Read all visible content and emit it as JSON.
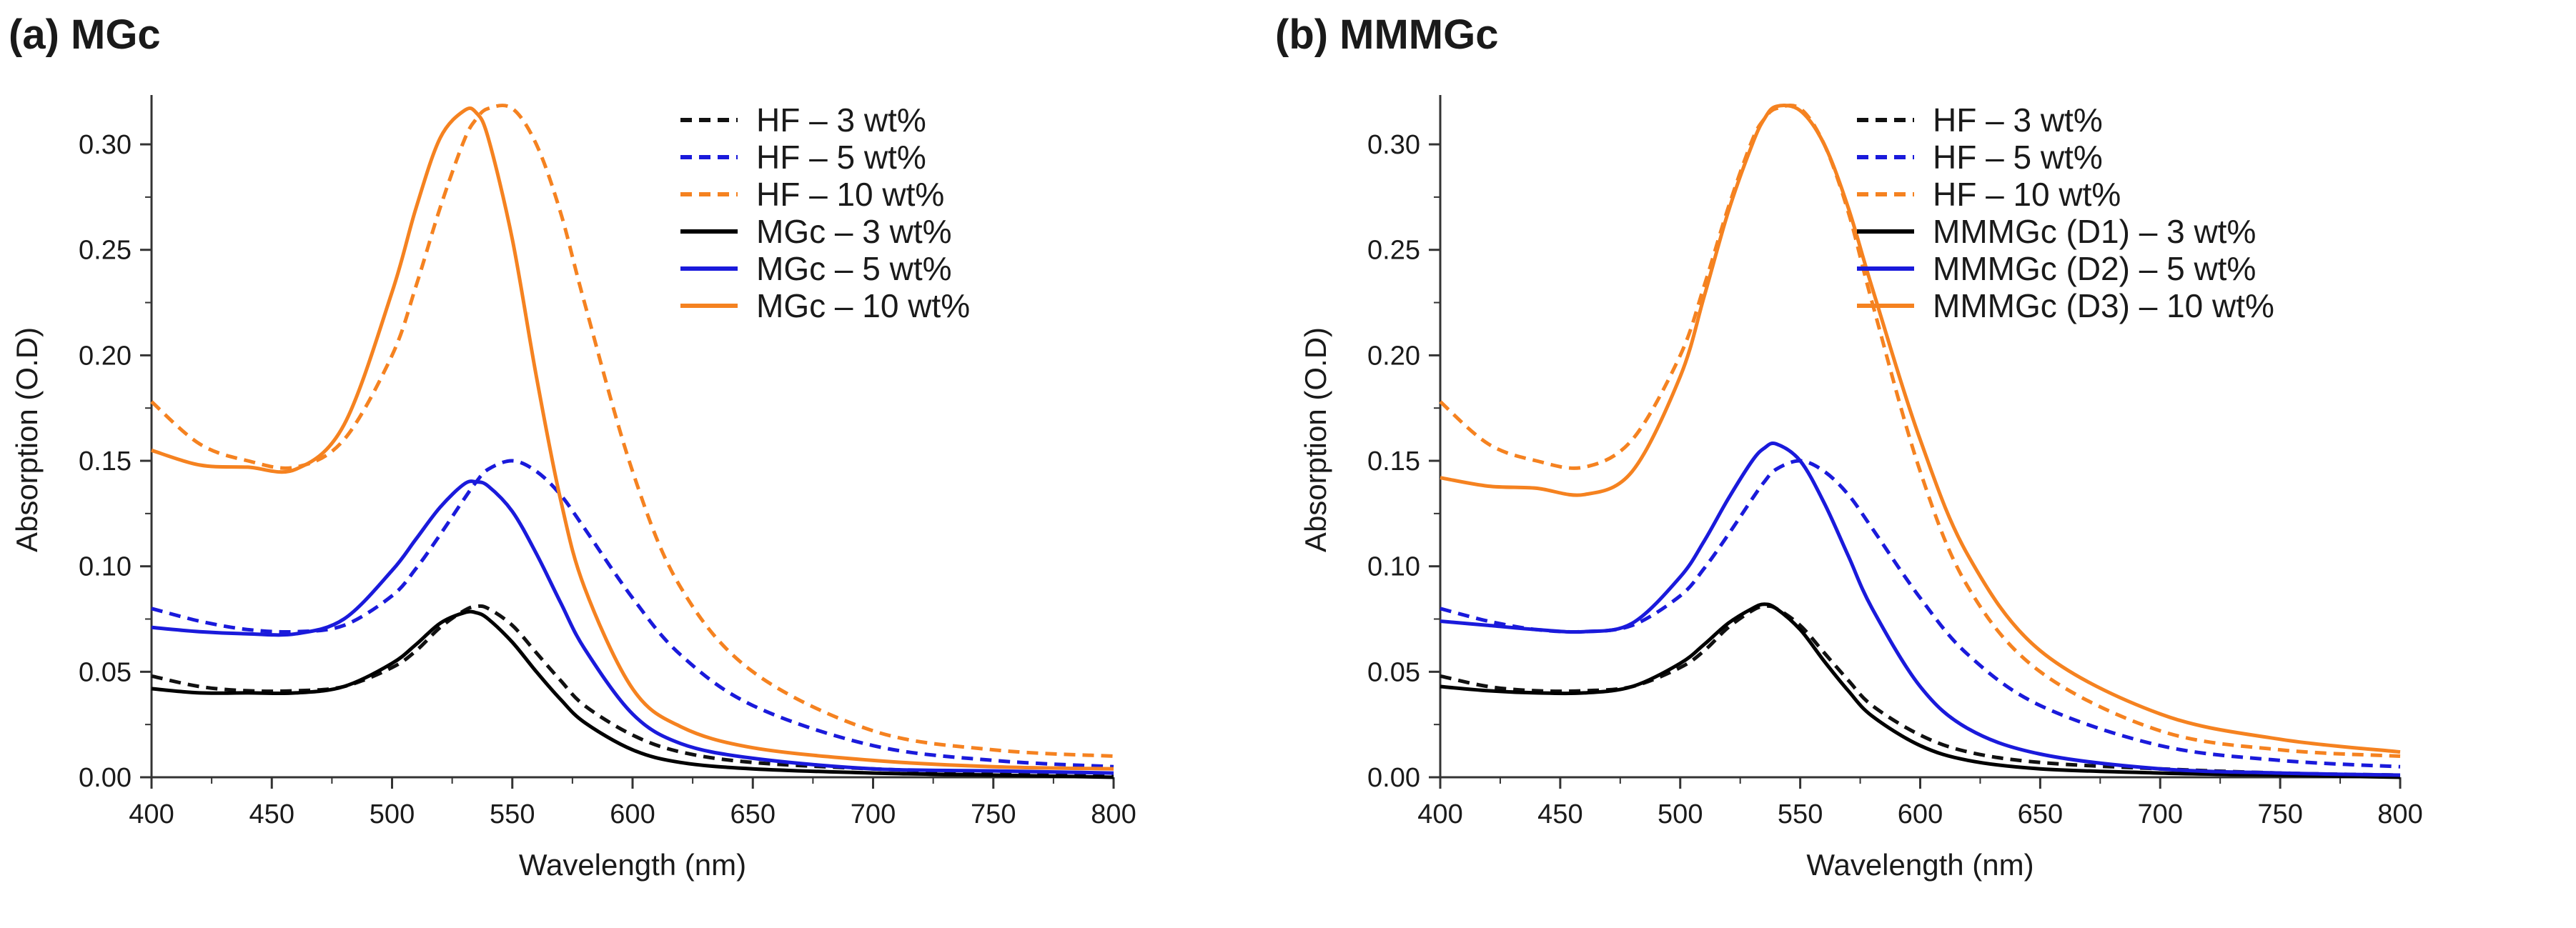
{
  "chart_data": [
    {
      "type": "line",
      "title": "(a) MGc",
      "xlabel": "Wavelength (nm)",
      "ylabel": "Absorption (O.D)",
      "xlim": [
        400,
        800
      ],
      "ylim": [
        0,
        0.32
      ],
      "xticks": [
        "400",
        "450",
        "500",
        "550",
        "600",
        "650",
        "700",
        "750",
        "800"
      ],
      "yticks": [
        "0.00",
        "0.05",
        "0.10",
        "0.15",
        "0.20",
        "0.25",
        "0.30"
      ],
      "legend_position": "top-right",
      "x": [
        400,
        420,
        440,
        460,
        480,
        500,
        510,
        520,
        530,
        535,
        540,
        550,
        560,
        570,
        580,
        600,
        620,
        650,
        700,
        750,
        800
      ],
      "series": [
        {
          "name": "HF – 3 wt%",
          "style": "dashed",
          "color": "#111111",
          "values": [
            0.048,
            0.043,
            0.041,
            0.041,
            0.043,
            0.052,
            0.06,
            0.071,
            0.079,
            0.081,
            0.08,
            0.072,
            0.059,
            0.046,
            0.034,
            0.02,
            0.012,
            0.007,
            0.004,
            0.002,
            0.001
          ]
        },
        {
          "name": "HF – 5 wt%",
          "style": "dashed",
          "color": "#1a1adb",
          "values": [
            0.08,
            0.074,
            0.07,
            0.069,
            0.072,
            0.086,
            0.099,
            0.115,
            0.132,
            0.14,
            0.146,
            0.15,
            0.145,
            0.134,
            0.118,
            0.085,
            0.058,
            0.034,
            0.015,
            0.008,
            0.005
          ]
        },
        {
          "name": "HF – 10 wt%",
          "style": "dashed",
          "color": "#f58220",
          "values": [
            0.178,
            0.158,
            0.15,
            0.147,
            0.16,
            0.2,
            0.233,
            0.27,
            0.302,
            0.312,
            0.317,
            0.317,
            0.3,
            0.268,
            0.225,
            0.145,
            0.09,
            0.05,
            0.022,
            0.013,
            0.01
          ]
        },
        {
          "name": "MGc – 3 wt%",
          "style": "solid",
          "color": "#000000",
          "values": [
            0.042,
            0.04,
            0.04,
            0.04,
            0.043,
            0.054,
            0.063,
            0.073,
            0.078,
            0.078,
            0.075,
            0.064,
            0.05,
            0.037,
            0.026,
            0.013,
            0.007,
            0.004,
            0.002,
            0.001,
            0.0
          ]
        },
        {
          "name": "MGc – 5 wt%",
          "style": "solid",
          "color": "#1a1adb",
          "values": [
            0.071,
            0.069,
            0.068,
            0.068,
            0.075,
            0.098,
            0.113,
            0.128,
            0.139,
            0.14,
            0.138,
            0.126,
            0.106,
            0.083,
            0.061,
            0.03,
            0.016,
            0.009,
            0.004,
            0.003,
            0.002
          ]
        },
        {
          "name": "MGc – 10 wt%",
          "style": "solid",
          "color": "#f58220",
          "values": [
            0.155,
            0.148,
            0.147,
            0.146,
            0.167,
            0.23,
            0.27,
            0.303,
            0.316,
            0.315,
            0.303,
            0.255,
            0.19,
            0.132,
            0.09,
            0.042,
            0.024,
            0.014,
            0.008,
            0.005,
            0.004
          ]
        }
      ]
    },
    {
      "type": "line",
      "title": "(b) MMMGc",
      "xlabel": "Wavelength (nm)",
      "ylabel": "Absorption (O.D)",
      "xlim": [
        400,
        800
      ],
      "ylim": [
        0,
        0.32
      ],
      "xticks": [
        "400",
        "450",
        "500",
        "550",
        "600",
        "650",
        "700",
        "750",
        "800"
      ],
      "yticks": [
        "0.00",
        "0.05",
        "0.10",
        "0.15",
        "0.20",
        "0.25",
        "0.30"
      ],
      "legend_position": "top-right",
      "x": [
        400,
        420,
        440,
        460,
        480,
        500,
        510,
        520,
        530,
        535,
        540,
        550,
        560,
        570,
        580,
        600,
        620,
        650,
        700,
        750,
        800
      ],
      "series": [
        {
          "name": "HF – 3 wt%",
          "style": "dashed",
          "color": "#111111",
          "values": [
            0.048,
            0.043,
            0.041,
            0.041,
            0.043,
            0.052,
            0.06,
            0.071,
            0.079,
            0.081,
            0.08,
            0.072,
            0.059,
            0.046,
            0.034,
            0.02,
            0.012,
            0.007,
            0.004,
            0.002,
            0.001
          ]
        },
        {
          "name": "HF – 5 wt%",
          "style": "dashed",
          "color": "#1a1adb",
          "values": [
            0.08,
            0.074,
            0.07,
            0.069,
            0.072,
            0.086,
            0.099,
            0.115,
            0.132,
            0.14,
            0.146,
            0.15,
            0.145,
            0.134,
            0.118,
            0.085,
            0.058,
            0.034,
            0.015,
            0.008,
            0.005
          ]
        },
        {
          "name": "HF – 10 wt%",
          "style": "dashed",
          "color": "#f58220",
          "values": [
            0.178,
            0.158,
            0.15,
            0.147,
            0.16,
            0.2,
            0.233,
            0.27,
            0.302,
            0.312,
            0.317,
            0.317,
            0.3,
            0.268,
            0.225,
            0.145,
            0.09,
            0.05,
            0.022,
            0.013,
            0.01
          ]
        },
        {
          "name": "MMMGc (D1) – 3 wt%",
          "style": "solid",
          "color": "#000000",
          "values": [
            0.043,
            0.041,
            0.04,
            0.04,
            0.043,
            0.054,
            0.063,
            0.073,
            0.08,
            0.082,
            0.08,
            0.07,
            0.055,
            0.041,
            0.029,
            0.015,
            0.008,
            0.004,
            0.002,
            0.001,
            0.0
          ]
        },
        {
          "name": "MMMGc (D2) – 5 wt%",
          "style": "solid",
          "color": "#1a1adb",
          "values": [
            0.074,
            0.072,
            0.07,
            0.069,
            0.073,
            0.095,
            0.112,
            0.132,
            0.15,
            0.156,
            0.158,
            0.15,
            0.13,
            0.105,
            0.08,
            0.043,
            0.023,
            0.011,
            0.004,
            0.002,
            0.001
          ]
        },
        {
          "name": "MMMGc (D3) – 10 wt%",
          "style": "solid",
          "color": "#f58220",
          "values": [
            0.142,
            0.138,
            0.137,
            0.134,
            0.145,
            0.19,
            0.228,
            0.268,
            0.3,
            0.312,
            0.318,
            0.316,
            0.3,
            0.27,
            0.232,
            0.16,
            0.105,
            0.06,
            0.03,
            0.018,
            0.012
          ]
        }
      ]
    }
  ]
}
